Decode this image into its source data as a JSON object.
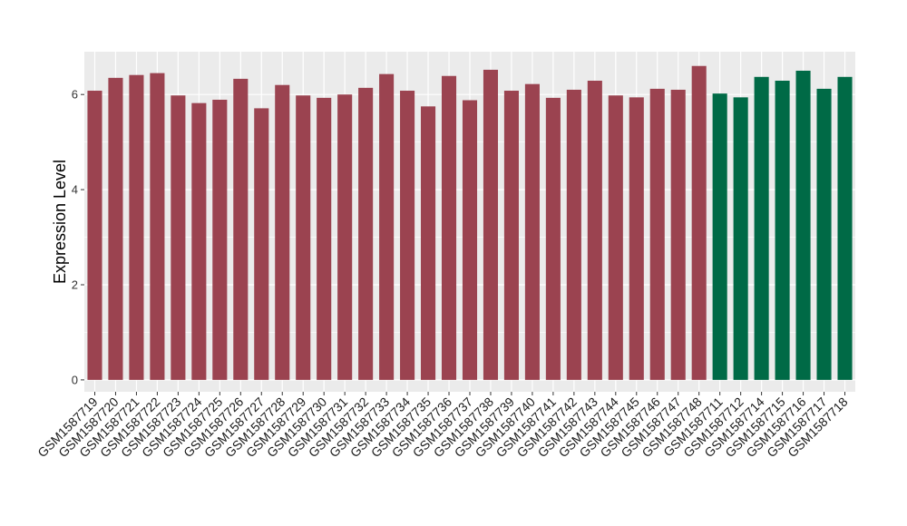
{
  "chart_data": {
    "type": "bar",
    "title": "",
    "xlabel": "",
    "ylabel": "Expression Level",
    "ylim": [
      -0.25,
      6.9
    ],
    "yticks": [
      0,
      2,
      4,
      6
    ],
    "grid": true,
    "legend": "none",
    "categories": [
      "GSM1587719",
      "GSM1587720",
      "GSM1587721",
      "GSM1587722",
      "GSM1587723",
      "GSM1587724",
      "GSM1587725",
      "GSM1587726",
      "GSM1587727",
      "GSM1587728",
      "GSM1587729",
      "GSM1587730",
      "GSM1587731",
      "GSM1587732",
      "GSM1587733",
      "GSM1587734",
      "GSM1587735",
      "GSM1587736",
      "GSM1587737",
      "GSM1587738",
      "GSM1587739",
      "GSM1587740",
      "GSM1587741",
      "GSM1587742",
      "GSM1587743",
      "GSM1587744",
      "GSM1587745",
      "GSM1587746",
      "GSM1587747",
      "GSM1587748",
      "GSM1587711",
      "GSM1587712",
      "GSM1587714",
      "GSM1587715",
      "GSM1587716",
      "GSM1587717",
      "GSM1587718"
    ],
    "values": [
      6.08,
      6.35,
      6.41,
      6.45,
      5.98,
      5.82,
      5.89,
      6.33,
      5.71,
      6.2,
      5.98,
      5.93,
      6.0,
      6.14,
      6.43,
      6.08,
      5.75,
      6.39,
      5.88,
      6.52,
      6.08,
      6.22,
      5.93,
      6.1,
      6.29,
      5.98,
      5.94,
      6.12,
      6.1,
      6.6,
      6.02,
      5.94,
      6.37,
      6.29,
      6.5,
      6.12,
      6.37
    ],
    "groups": [
      "red",
      "red",
      "red",
      "red",
      "red",
      "red",
      "red",
      "red",
      "red",
      "red",
      "red",
      "red",
      "red",
      "red",
      "red",
      "red",
      "red",
      "red",
      "red",
      "red",
      "red",
      "red",
      "red",
      "red",
      "red",
      "red",
      "red",
      "red",
      "red",
      "red",
      "green",
      "green",
      "green",
      "green",
      "green",
      "green",
      "green"
    ],
    "colors": {
      "red": "#9b4350",
      "green": "#006a46"
    },
    "panel_background": "#ebebeb",
    "gridline_color": "#ffffff"
  }
}
